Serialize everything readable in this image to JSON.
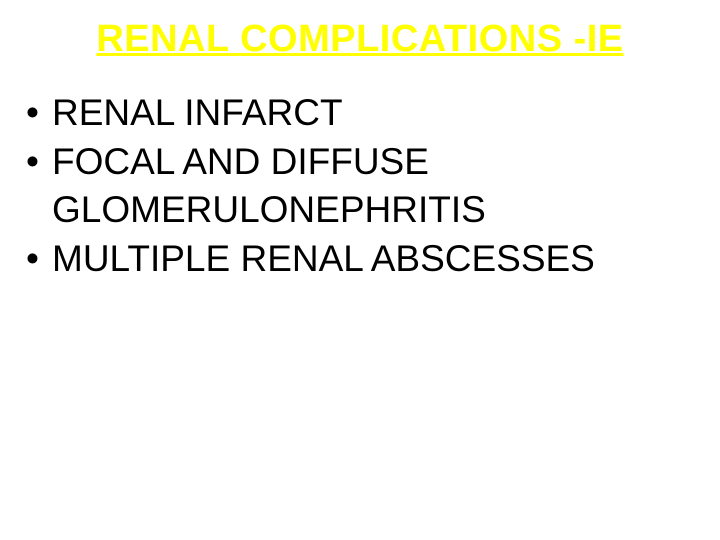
{
  "slide": {
    "title": "RENAL COMPLICATIONS -IE",
    "title_color": "#ffff00",
    "title_fontsize": 38,
    "bullets": [
      "RENAL INFARCT",
      "FOCAL AND DIFFUSE GLOMERULONEPHRITIS",
      "MULTIPLE RENAL ABSCESSES"
    ],
    "bullet_color": "#000000",
    "bullet_fontsize": 37,
    "bullet_lineheight": 1.28,
    "background_color": "#ffffff"
  }
}
